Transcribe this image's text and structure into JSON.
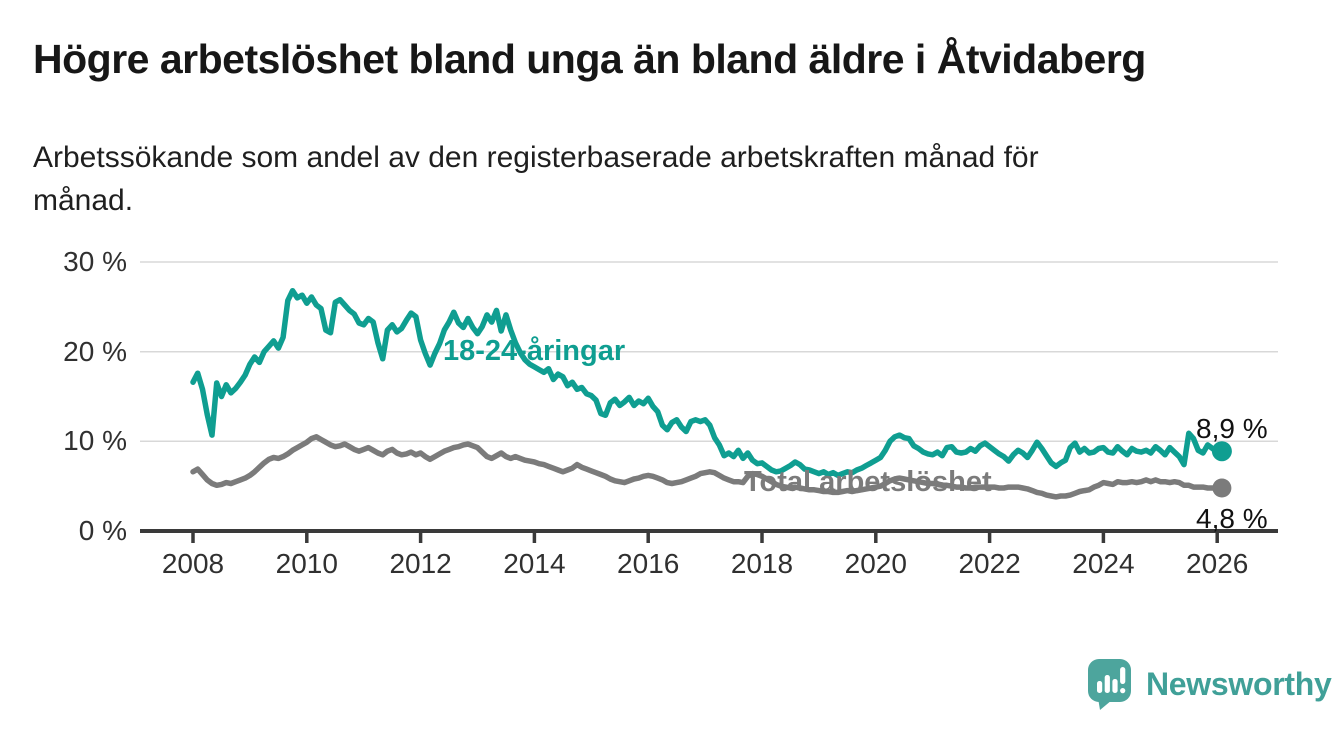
{
  "header": {
    "title": "Högre arbetslöshet bland unga än bland äldre i Åtvidaberg",
    "subtitle_lines": [
      "Arbetssökande som andel av den registerbaserade arbetskraften månad för",
      "månad."
    ]
  },
  "branding": {
    "wordmark": "Newsworthy",
    "logo_icon": "speech-bubble-bar-chart-exclamation",
    "logo_color": "#4da59d",
    "wordmark_color": "#40a098"
  },
  "colors": {
    "youth_line": "#0f9e91",
    "total_line": "#7b7b7b",
    "gridline": "#d8d8d8",
    "axis": "#3a3a3a",
    "background": "#ffffff"
  },
  "chart_data": {
    "type": "line",
    "frequency": "monthly",
    "x_start": "2008-01",
    "x_end": "2026-02",
    "ylim": [
      0,
      30
    ],
    "grid": "horizontal",
    "legend_position": "inline-labels",
    "y_ticks": [
      {
        "label": "30 %",
        "value": 30
      },
      {
        "label": "20 %",
        "value": 20
      },
      {
        "label": "10 %",
        "value": 10
      },
      {
        "label": "0 %",
        "value": 0
      }
    ],
    "x_ticks": [
      {
        "label": "2008",
        "month_index": 0
      },
      {
        "label": "2010",
        "month_index": 24
      },
      {
        "label": "2012",
        "month_index": 48
      },
      {
        "label": "2014",
        "month_index": 72
      },
      {
        "label": "2016",
        "month_index": 96
      },
      {
        "label": "2018",
        "month_index": 120
      },
      {
        "label": "2020",
        "month_index": 144
      },
      {
        "label": "2022",
        "month_index": 168
      },
      {
        "label": "2024",
        "month_index": 192
      },
      {
        "label": "2026",
        "month_index": 216
      }
    ],
    "series": [
      {
        "name": "18-24-åringar",
        "color": "#0f9e91",
        "end_label": "8,9 %",
        "end_value": 8.9,
        "values": [
          16.6,
          17.6,
          15.8,
          13.0,
          10.7,
          16.5,
          15.0,
          16.3,
          15.4,
          15.9,
          16.6,
          17.4,
          18.6,
          19.4,
          18.8,
          20.0,
          20.6,
          21.2,
          20.4,
          21.6,
          25.7,
          26.8,
          26.0,
          26.3,
          25.4,
          26.1,
          25.2,
          24.8,
          22.4,
          22.1,
          25.5,
          25.8,
          25.2,
          24.6,
          24.2,
          23.2,
          23.0,
          23.7,
          23.3,
          21.0,
          19.2,
          22.4,
          23.0,
          22.2,
          22.6,
          23.5,
          24.3,
          23.9,
          21.3,
          19.8,
          18.5,
          19.8,
          20.9,
          22.4,
          23.3,
          24.4,
          23.2,
          22.7,
          23.7,
          22.7,
          22.0,
          22.8,
          24.1,
          23.3,
          24.6,
          22.3,
          24.1,
          22.4,
          21.0,
          19.9,
          19.1,
          18.6,
          18.3,
          18.0,
          17.7,
          18.1,
          16.9,
          17.5,
          17.2,
          16.2,
          16.6,
          15.8,
          16.0,
          15.3,
          15.1,
          14.6,
          13.1,
          12.9,
          14.3,
          14.7,
          14.0,
          14.4,
          14.9,
          14.0,
          14.5,
          14.2,
          14.8,
          13.9,
          13.3,
          11.8,
          11.3,
          12.1,
          12.4,
          11.6,
          11.1,
          12.2,
          12.4,
          12.2,
          12.4,
          11.8,
          10.4,
          9.6,
          8.4,
          8.7,
          8.3,
          9.0,
          8.1,
          8.7,
          7.9,
          7.5,
          7.6,
          7.2,
          6.8,
          6.6,
          6.7,
          7.0,
          7.3,
          7.7,
          7.4,
          6.9,
          6.8,
          6.6,
          6.4,
          6.6,
          6.3,
          6.5,
          6.2,
          6.4,
          6.6,
          6.5,
          6.8,
          7.0,
          7.3,
          7.6,
          7.9,
          8.2,
          9.0,
          10.0,
          10.5,
          10.7,
          10.4,
          10.3,
          9.5,
          9.2,
          8.8,
          8.6,
          8.5,
          8.8,
          8.4,
          9.3,
          9.4,
          8.8,
          8.7,
          8.8,
          9.2,
          8.9,
          9.5,
          9.8,
          9.4,
          9.0,
          8.6,
          8.3,
          7.8,
          8.5,
          9.0,
          8.7,
          8.2,
          9.0,
          9.9,
          9.2,
          8.4,
          7.6,
          7.2,
          7.6,
          7.9,
          9.3,
          9.8,
          8.8,
          9.2,
          8.7,
          8.8,
          9.2,
          9.3,
          8.8,
          8.7,
          9.4,
          8.9,
          8.5,
          9.2,
          8.9,
          8.8,
          9.0,
          8.7,
          9.4,
          9.0,
          8.5,
          9.3,
          8.8,
          8.3,
          7.4,
          10.9,
          10.3,
          9.0,
          8.7,
          9.6,
          9.2,
          8.8,
          8.9
        ]
      },
      {
        "name": "Total arbetslöshet",
        "color": "#7b7b7b",
        "end_label": "4,8 %",
        "end_value": 4.8,
        "values": [
          6.6,
          6.9,
          6.3,
          5.7,
          5.3,
          5.1,
          5.2,
          5.4,
          5.3,
          5.5,
          5.7,
          5.9,
          6.2,
          6.6,
          7.1,
          7.6,
          8.0,
          8.2,
          8.1,
          8.3,
          8.6,
          9.0,
          9.3,
          9.6,
          9.9,
          10.3,
          10.5,
          10.2,
          9.9,
          9.6,
          9.4,
          9.5,
          9.7,
          9.4,
          9.1,
          8.9,
          9.1,
          9.3,
          9.0,
          8.7,
          8.5,
          8.9,
          9.1,
          8.7,
          8.5,
          8.6,
          8.8,
          8.5,
          8.7,
          8.3,
          8.0,
          8.3,
          8.6,
          8.9,
          9.1,
          9.3,
          9.4,
          9.6,
          9.7,
          9.5,
          9.3,
          8.8,
          8.3,
          8.1,
          8.4,
          8.7,
          8.3,
          8.1,
          8.3,
          8.1,
          7.9,
          7.8,
          7.7,
          7.5,
          7.4,
          7.2,
          7.0,
          6.8,
          6.6,
          6.8,
          7.0,
          7.4,
          7.1,
          6.9,
          6.7,
          6.5,
          6.3,
          6.1,
          5.8,
          5.6,
          5.5,
          5.4,
          5.6,
          5.8,
          5.9,
          6.1,
          6.2,
          6.1,
          5.9,
          5.7,
          5.4,
          5.3,
          5.4,
          5.5,
          5.7,
          5.9,
          6.1,
          6.4,
          6.5,
          6.6,
          6.5,
          6.2,
          5.9,
          5.7,
          5.5,
          5.5,
          5.4,
          6.1,
          6.4,
          6.3,
          6.1,
          5.8,
          5.5,
          5.2,
          5.0,
          4.9,
          4.8,
          4.9,
          4.8,
          4.7,
          4.6,
          4.6,
          4.5,
          4.4,
          4.4,
          4.3,
          4.3,
          4.4,
          4.5,
          4.4,
          4.5,
          4.6,
          4.7,
          4.8,
          4.9,
          5.0,
          5.3,
          5.6,
          5.8,
          5.9,
          5.8,
          5.7,
          5.6,
          5.5,
          5.4,
          5.3,
          5.3,
          5.2,
          5.1,
          5.1,
          5.0,
          4.9,
          4.9,
          4.8,
          4.8,
          4.9,
          4.9,
          4.9,
          4.9,
          4.9,
          4.8,
          4.8,
          4.9,
          4.9,
          4.9,
          4.8,
          4.7,
          4.5,
          4.3,
          4.2,
          4.0,
          3.9,
          3.8,
          3.9,
          3.9,
          4.0,
          4.2,
          4.4,
          4.5,
          4.6,
          4.9,
          5.1,
          5.4,
          5.3,
          5.2,
          5.5,
          5.4,
          5.4,
          5.5,
          5.4,
          5.5,
          5.7,
          5.5,
          5.7,
          5.5,
          5.5,
          5.4,
          5.5,
          5.4,
          5.1,
          5.1,
          4.9,
          4.9,
          4.9,
          4.8,
          4.8,
          4.8,
          4.8
        ]
      }
    ]
  }
}
